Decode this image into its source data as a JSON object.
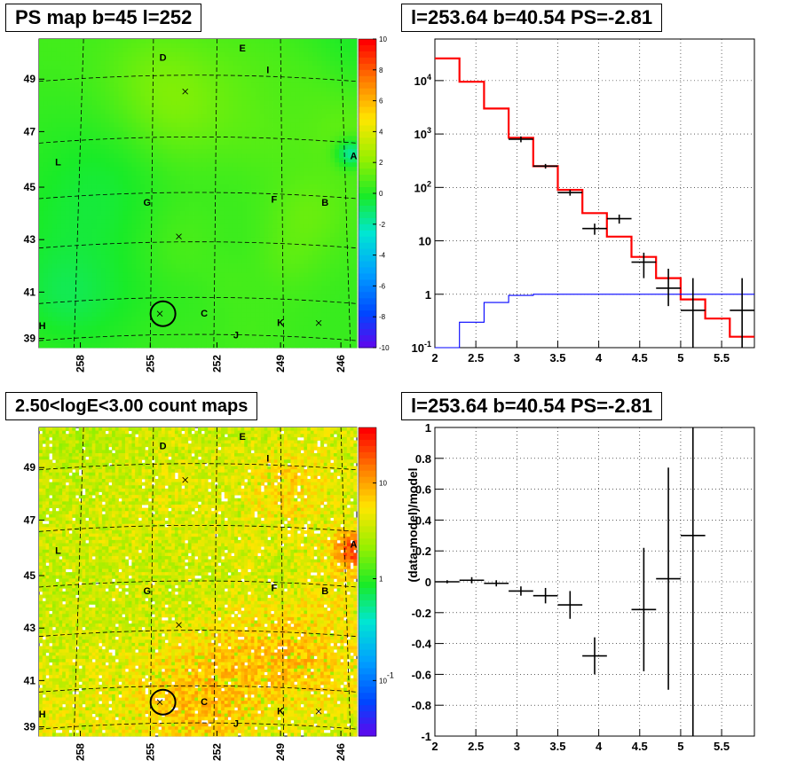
{
  "titles": {
    "ps_map": "PS map b=45 l=252",
    "spectrum": "l=253.64 b=40.54 PS=-2.81",
    "count_map": "2.50<logE<3.00 count maps",
    "residual": "l=253.64 b=40.54 PS=-2.81"
  },
  "colors": {
    "model_line": "#ff0000",
    "background_line": "#0000ff",
    "data_points": "#000000",
    "grid": "#000000"
  },
  "chart_data": [
    {
      "type": "heatmap",
      "name": "ps_map",
      "title": "PS map b=45 l=252",
      "x_ticks": [
        "258",
        "255",
        "252",
        "249",
        "246"
      ],
      "y_ticks": [
        "39",
        "41",
        "43",
        "45",
        "47",
        "49"
      ],
      "colorbar_ticks": [
        "10",
        "8",
        "6",
        "4",
        "2",
        "0",
        "-2",
        "-4",
        "-6",
        "-8",
        "-10"
      ],
      "zlim": [
        -10,
        10
      ],
      "source_labels": [
        "D",
        "E",
        "I",
        "L",
        "A",
        "G",
        "F",
        "B",
        "C",
        "H",
        "J",
        "K"
      ]
    },
    {
      "type": "line",
      "name": "spectrum",
      "title": "l=253.64 b=40.54 PS=-2.81",
      "yscale": "log",
      "xlim": [
        2,
        5.9
      ],
      "ylim": [
        0.1,
        60000
      ],
      "x_ticks": [
        "2",
        "2.5",
        "3",
        "3.5",
        "4",
        "4.5",
        "5",
        "5.5"
      ],
      "y_ticks": [
        "10^-1",
        "1",
        "10",
        "10^2",
        "10^3",
        "10^4"
      ],
      "grid": true,
      "series": [
        {
          "style": "step",
          "color": "#ff0000",
          "bin_edges": [
            2.0,
            2.3,
            2.6,
            2.9,
            3.2,
            3.5,
            3.8,
            4.1,
            4.4,
            4.7,
            5.0,
            5.3,
            5.6,
            5.9
          ],
          "values": [
            26000,
            9500,
            3000,
            850,
            250,
            90,
            33,
            12,
            5,
            2,
            0.8,
            0.35,
            0.16
          ]
        },
        {
          "style": "step",
          "color": "#0000ff",
          "bin_edges": [
            2.0,
            2.3,
            2.6,
            2.9,
            3.2,
            3.5,
            3.8,
            4.1,
            4.4,
            4.7,
            5.0,
            5.3,
            5.6,
            5.9
          ],
          "values": [
            0.05,
            0.3,
            0.7,
            0.95,
            1.0,
            1.0,
            1.0,
            1.0,
            1.0,
            1.0,
            1.0,
            1.0,
            1.0
          ]
        },
        {
          "style": "errorbar",
          "color": "#000000",
          "x": [
            3.05,
            3.35,
            3.65,
            3.95,
            4.25,
            4.55,
            4.85,
            5.15,
            5.75
          ],
          "xerr": 0.15,
          "y": [
            800,
            250,
            80,
            17,
            26,
            4,
            1.3,
            0.5,
            0.5
          ],
          "ylow": [
            700,
            225,
            70,
            13,
            21,
            2,
            0.6,
            0.1,
            0.1
          ],
          "yhigh": [
            900,
            275,
            90,
            21,
            31,
            6,
            3,
            2,
            2
          ]
        }
      ]
    },
    {
      "type": "heatmap",
      "name": "count_map",
      "title": "2.50<logE<3.00 count maps",
      "x_ticks": [
        "258",
        "255",
        "252",
        "249",
        "246"
      ],
      "y_ticks": [
        "39",
        "41",
        "43",
        "45",
        "47",
        "49"
      ],
      "colorbar_ticks": [
        "10",
        "1",
        "10^-1"
      ],
      "zscale": "log",
      "source_labels": [
        "D",
        "E",
        "I",
        "L",
        "A",
        "G",
        "F",
        "B",
        "C",
        "H",
        "J",
        "K"
      ]
    },
    {
      "type": "scatter",
      "name": "residual",
      "title": "l=253.64 b=40.54 PS=-2.81",
      "ylabel": "(data-model)/model",
      "xlim": [
        2,
        5.9
      ],
      "ylim": [
        -1,
        1
      ],
      "x_ticks": [
        "2",
        "2.5",
        "3",
        "3.5",
        "4",
        "4.5",
        "5",
        "5.5"
      ],
      "y_ticks": [
        "1",
        "0.8",
        "0.6",
        "0.4",
        "0.2",
        "0",
        "-0.2",
        "-0.4",
        "-0.6",
        "-0.8",
        "-1"
      ],
      "grid": true,
      "x": [
        2.15,
        2.45,
        2.75,
        3.05,
        3.35,
        3.65,
        3.95,
        4.55,
        4.85,
        5.15
      ],
      "xerr": 0.15,
      "y": [
        0.0,
        0.01,
        -0.01,
        -0.06,
        -0.09,
        -0.15,
        -0.48,
        -0.18,
        0.02,
        0.3
      ],
      "yerr": [
        0.01,
        0.02,
        0.02,
        0.03,
        0.05,
        0.09,
        0.12,
        0.4,
        0.72,
        1.5
      ]
    }
  ]
}
